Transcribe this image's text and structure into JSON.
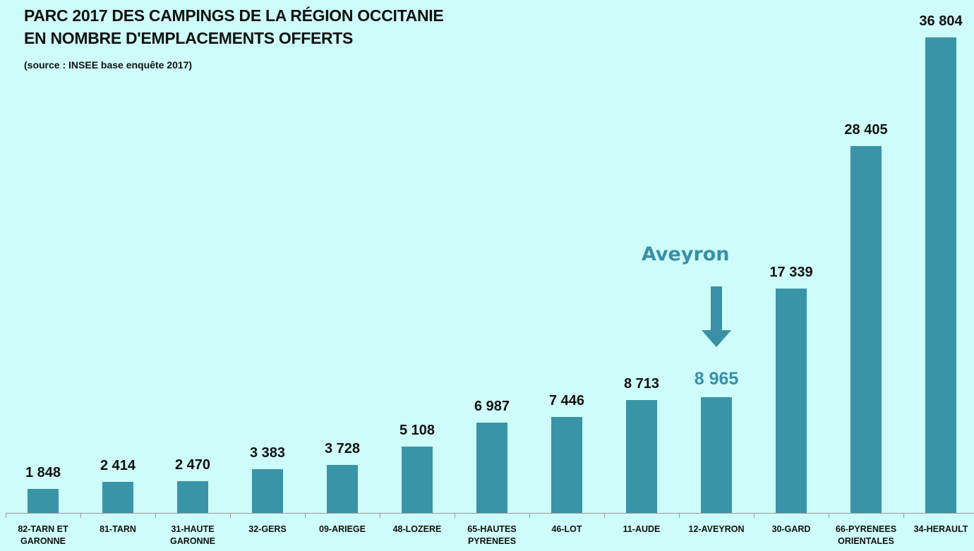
{
  "chart_data": {
    "type": "bar",
    "title": "PARC 2017 DES CAMPINGS DE LA RÉGION OCCITANIE\nEN NOMBRE D'EMPLACEMENTS OFFERTS",
    "subtitle": "(source : INSEE base enquête 2017)",
    "categories": [
      "82-TARN ET\nGARONNE",
      "81-TARN",
      "31-HAUTE\nGARONNE",
      "32-GERS",
      "09-ARIEGE",
      "48-LOZERE",
      "65-HAUTES\nPYRENEES",
      "46-LOT",
      "11-AUDE",
      "12-AVEYRON",
      "30-GARD",
      "66-PYRENEES\nORIENTALES",
      "34-HERAULT"
    ],
    "values": [
      1848,
      2414,
      2470,
      3383,
      3728,
      5108,
      6987,
      7446,
      8713,
      8965,
      17339,
      28405,
      36804
    ],
    "value_labels": [
      "1 848",
      "2 414",
      "2 470",
      "3 383",
      "3 728",
      "5 108",
      "6 987",
      "7 446",
      "8 713",
      "8 965",
      "17 339",
      "28 405",
      "36 804"
    ],
    "color": "#3a94a8",
    "annotation": {
      "text": "Aveyron",
      "category": "12-AVEYRON",
      "color": "#3b8fa6"
    }
  }
}
